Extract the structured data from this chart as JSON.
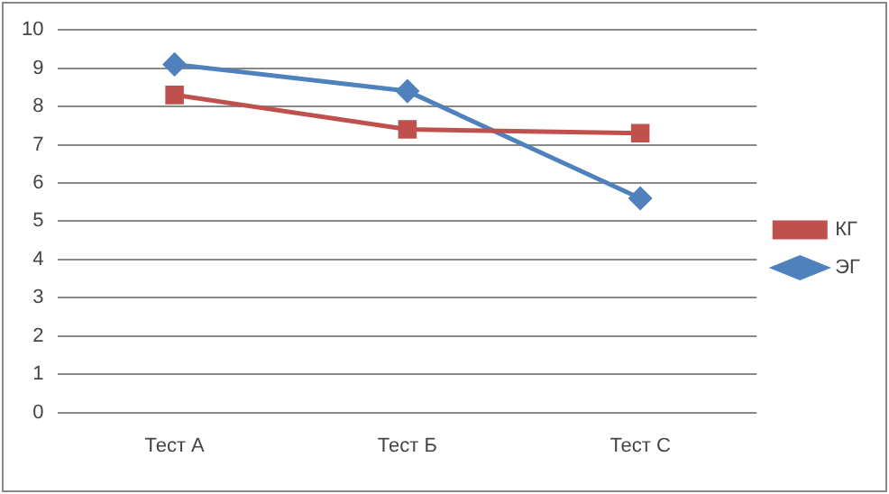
{
  "chart_data": {
    "type": "line",
    "categories": [
      "Тест А",
      "Тест Б",
      "Тест С"
    ],
    "series": [
      {
        "name": "КГ",
        "color": "#c0504d",
        "values": [
          8.3,
          7.4,
          7.3
        ],
        "marker": "square"
      },
      {
        "name": "ЭГ",
        "color": "#4f81bd",
        "values": [
          9.1,
          8.4,
          5.6
        ],
        "marker": "diamond"
      }
    ],
    "ylim": [
      0,
      10
    ],
    "yticks": [
      0,
      1,
      2,
      3,
      4,
      5,
      6,
      7,
      8,
      9,
      10
    ],
    "grid": "y",
    "legend": "right"
  }
}
